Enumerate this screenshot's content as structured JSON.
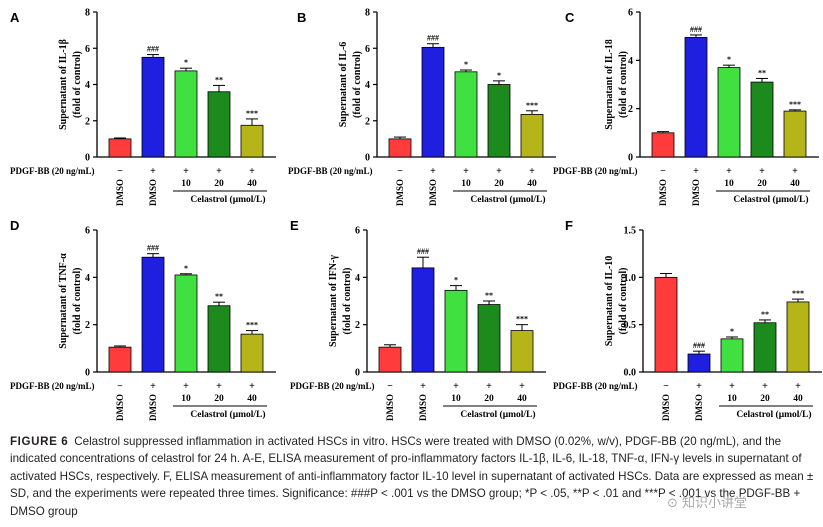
{
  "figure_caption": {
    "label": "FIGURE 6",
    "text": "Celastrol suppressed inflammation in activated HSCs in vitro. HSCs were treated with DMSO (0.02%, w/v), PDGF-BB (20 ng/mL), and the indicated concentrations of celastrol for 24 h. A-E, ELISA measurement of pro-inflammatory factors IL-1β, IL-6, IL-18, TNF-α, IFN-γ levels in supernatant of activated HSCs, respectively. F, ELISA measurement of anti-inflammatory factor IL-10 level in supernatant of activated HSCs. Data are expressed as mean ± SD, and the experiments were repeated three times. Significance: ###P < .001 vs the DMSO group; *P < .05, **P < .01 and ***P < .001 vs the PDGF-BB + DMSO group"
  },
  "watermark": "⊙ 知识小讲堂",
  "shared": {
    "pdgf_label": "PDGF-BB (20 ng/mL)",
    "pdgf_row": [
      "−",
      "+",
      "+",
      "+",
      "+"
    ],
    "vehicle_labels": [
      "DMSO",
      "DMSO"
    ],
    "doses": [
      "10",
      "20",
      "40"
    ],
    "celastrol_label": "Celastrol (μmol/L)",
    "bar_colors": [
      "#ff3b3b",
      "#1f1fe0",
      "#3fe03f",
      "#1d8a1d",
      "#b5b51a"
    ]
  },
  "chart_data": [
    {
      "panel": "A",
      "type": "bar",
      "ylabel": [
        "Supernatant of IL-1β",
        "(fold of control)"
      ],
      "ylim": [
        0,
        8
      ],
      "ticks": [
        0,
        2,
        4,
        6,
        8
      ],
      "values": [
        1.0,
        5.5,
        4.75,
        3.6,
        1.75
      ],
      "errors": [
        0.05,
        0.15,
        0.15,
        0.35,
        0.35
      ],
      "sig": [
        "",
        "###",
        "*",
        "**",
        "***"
      ]
    },
    {
      "panel": "B",
      "type": "bar",
      "ylabel": [
        "Supernatant of IL-6",
        "(fold of control)"
      ],
      "ylim": [
        0,
        8
      ],
      "ticks": [
        0,
        2,
        4,
        6,
        8
      ],
      "values": [
        1.0,
        6.05,
        4.7,
        4.0,
        2.35
      ],
      "errors": [
        0.1,
        0.2,
        0.1,
        0.2,
        0.2
      ],
      "sig": [
        "",
        "###",
        "*",
        "*",
        "***"
      ]
    },
    {
      "panel": "C",
      "type": "bar",
      "ylabel": [
        "Supernatant of IL-18",
        "(fold of control)"
      ],
      "ylim": [
        0,
        6
      ],
      "ticks": [
        0,
        2,
        4,
        6
      ],
      "values": [
        1.0,
        4.95,
        3.7,
        3.1,
        1.9
      ],
      "errors": [
        0.05,
        0.1,
        0.1,
        0.15,
        0.05
      ],
      "sig": [
        "",
        "###",
        "*",
        "**",
        "***"
      ]
    },
    {
      "panel": "D",
      "type": "bar",
      "ylabel": [
        "Supernatant of TNF-α",
        "(fold of control)"
      ],
      "ylim": [
        0,
        6
      ],
      "ticks": [
        0,
        2,
        4,
        6
      ],
      "values": [
        1.05,
        4.85,
        4.1,
        2.8,
        1.6
      ],
      "errors": [
        0.05,
        0.15,
        0.05,
        0.15,
        0.15
      ],
      "sig": [
        "",
        "###",
        "*",
        "**",
        "***"
      ]
    },
    {
      "panel": "E",
      "type": "bar",
      "ylabel": [
        "Supernatant of IFN-γ",
        "(fold of control)"
      ],
      "ylim": [
        0,
        6
      ],
      "ticks": [
        0,
        2,
        4,
        6
      ],
      "values": [
        1.05,
        4.4,
        3.45,
        2.85,
        1.75
      ],
      "errors": [
        0.1,
        0.45,
        0.2,
        0.15,
        0.25
      ],
      "sig": [
        "",
        "###",
        "*",
        "**",
        "***"
      ]
    },
    {
      "panel": "F",
      "type": "bar",
      "ylabel": [
        "Supernatant of IL-10",
        "(fold of control)"
      ],
      "ylim": [
        0,
        1.5
      ],
      "ticks": [
        "0.0",
        "0.5",
        "1.0",
        "1.5"
      ],
      "values": [
        1.0,
        0.19,
        0.35,
        0.52,
        0.74
      ],
      "errors": [
        0.04,
        0.03,
        0.02,
        0.03,
        0.03
      ],
      "sig": [
        "",
        "###",
        "*",
        "**",
        "***"
      ]
    }
  ]
}
